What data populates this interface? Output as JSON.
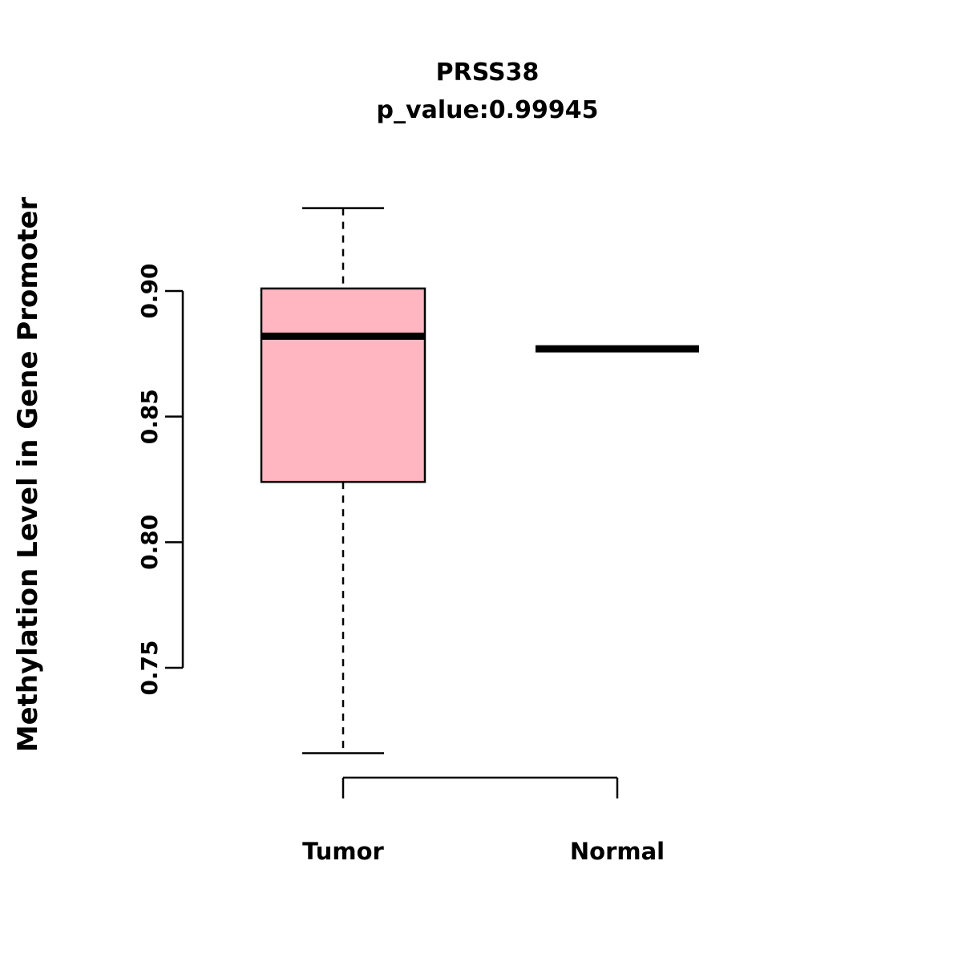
{
  "chart_data": {
    "type": "boxplot",
    "title": "PRSS38",
    "subtitle": "p_value:0.99945",
    "xlabel": "",
    "ylabel": "Methylation Level in Gene Promoter",
    "categories": [
      "Tumor",
      "Normal"
    ],
    "series": [
      {
        "name": "Tumor",
        "lower_whisker": 0.716,
        "q1": 0.824,
        "median": 0.882,
        "q3": 0.901,
        "upper_whisker": 0.933
      },
      {
        "name": "Normal",
        "lower_whisker": 0.877,
        "q1": 0.877,
        "median": 0.877,
        "q3": 0.877,
        "upper_whisker": 0.877
      }
    ],
    "yticks": [
      {
        "value": 0.9,
        "label": "0.90"
      },
      {
        "value": 0.85,
        "label": "0.85"
      },
      {
        "value": 0.8,
        "label": "0.80"
      },
      {
        "value": 0.75,
        "label": "0.75"
      }
    ],
    "ylim": [
      0.71,
      0.94
    ],
    "grid": false,
    "legend": "none",
    "colors": {
      "box_fill": "#FFB6C1",
      "stroke": "#000000"
    }
  }
}
